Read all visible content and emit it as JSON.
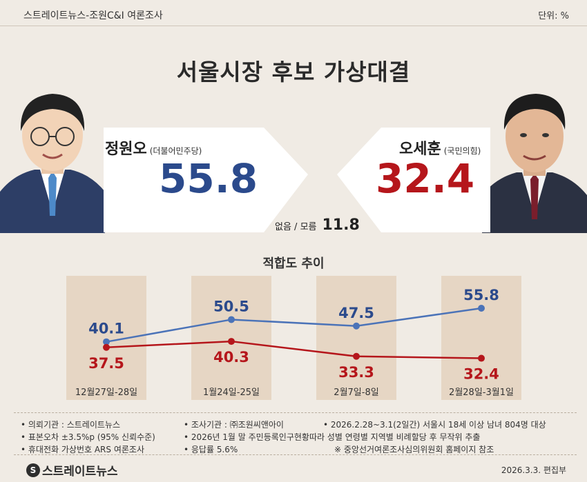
{
  "header": {
    "source": "스트레이트뉴스-조원C&I 여론조사",
    "unit": "단위: %"
  },
  "title": "서울시장 후보 가상대결",
  "candidates": [
    {
      "name": "정원오",
      "party": "(더불어민주당)",
      "value": "55.8",
      "color": "#2b4a8c"
    },
    {
      "name": "오세훈",
      "party": "(국민의힘)",
      "value": "32.4",
      "color": "#b5161b"
    }
  ],
  "undecided": {
    "label": "없음 / 모름",
    "value": "11.8"
  },
  "chart_data": {
    "type": "line",
    "title": "적합도 추이",
    "categories": [
      "12월27일-28일",
      "1월24일-25일",
      "2월7일-8일",
      "2월28일-3월1일"
    ],
    "series": [
      {
        "name": "정원오",
        "values": [
          40.1,
          50.5,
          47.5,
          55.8
        ],
        "color": "#4b73b8",
        "label_color": "#2b4a8c"
      },
      {
        "name": "오세훈",
        "values": [
          37.5,
          40.3,
          33.3,
          32.4
        ],
        "color": "#b5161b",
        "label_color": "#b5161b"
      }
    ],
    "grid": false
  },
  "footer": {
    "notes": [
      "• 의뢰기관 : 스트레이트뉴스",
      "• 조사기관 : ㈜조원씨앤아이",
      "• 2026.2.28~3.1(2일간) 서울시 18세 이상 남녀 804명 대상",
      "• 표본오차 ±3.5%p (95% 신뢰수준)",
      "• 2026년 1월 말 주민등록인구현황따라 성별 연령별 지역별 비례할당 후 무작위 추출",
      "• 휴대전화 가상번호 ARS 여론조사",
      "• 응답률 5.6%",
      "※ 중앙선거여론조사심의위원회 홈페이지 참조"
    ],
    "logo_text": "스트레이트뉴스",
    "credit": "2026.3.3.  편집부"
  }
}
